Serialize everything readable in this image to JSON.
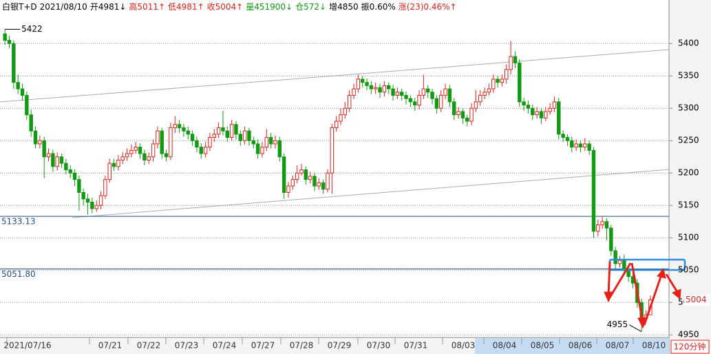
{
  "chart_data": {
    "type": "candlestick",
    "header": [
      "白银T+D",
      "2021/08/10",
      "开4981↓",
      "高5011↑",
      "低4981↑",
      "收5004↑",
      "量451900↓",
      "仓572↓",
      "增4850",
      "振0.60%",
      "涨(23)0.46%↑"
    ],
    "header_colors": [
      "#000000",
      "#000000",
      "#000000",
      "#e0201b",
      "#e0201b",
      "#e0201b",
      "#129a12",
      "#129a12",
      "#000000",
      "#000000",
      "#e0201b"
    ],
    "x_labels": [
      "2021/07/16",
      "07/21",
      "07/22",
      "07/23",
      "07/24",
      "07/27",
      "07/28",
      "07/29",
      "07/30",
      "07/31",
      "08/03",
      "08/04",
      "08/05",
      "08/06",
      "08/07",
      "08/10"
    ],
    "period": "120分钟",
    "up_color": "#e0201b",
    "down_color": "#129a12",
    "ylim": [
      4946,
      5446
    ],
    "yticks": [
      4950,
      5000,
      5050,
      5100,
      5150,
      5200,
      5250,
      5300,
      5350,
      5400
    ],
    "grid": true,
    "reference_lines": [
      5133.13,
      {
        "value": 5051.8,
        "label": "5051.80"
      }
    ],
    "high_label": 5422,
    "low_label": 4955,
    "last_label": 5004,
    "candles": [
      [
        5415,
        5422,
        5398,
        5405
      ],
      [
        5405,
        5412,
        5393,
        5400
      ],
      [
        5400,
        5405,
        5330,
        5340
      ],
      [
        5340,
        5352,
        5322,
        5330
      ],
      [
        5330,
        5338,
        5312,
        5320
      ],
      [
        5320,
        5326,
        5282,
        5290
      ],
      [
        5290,
        5298,
        5256,
        5265
      ],
      [
        5265,
        5272,
        5238,
        5245
      ],
      [
        5245,
        5258,
        5238,
        5250
      ],
      [
        5250,
        5256,
        5192,
        5225
      ],
      [
        5225,
        5238,
        5218,
        5230
      ],
      [
        5230,
        5236,
        5202,
        5210
      ],
      [
        5210,
        5232,
        5204,
        5225
      ],
      [
        5225,
        5230,
        5208,
        5215
      ],
      [
        5215,
        5222,
        5198,
        5205
      ],
      [
        5205,
        5212,
        5192,
        5200
      ],
      [
        5200,
        5206,
        5180,
        5190
      ],
      [
        5190,
        5196,
        5142,
        5170
      ],
      [
        5170,
        5176,
        5150,
        5160
      ],
      [
        5160,
        5168,
        5136,
        5155
      ],
      [
        5155,
        5162,
        5138,
        5145
      ],
      [
        5145,
        5158,
        5140,
        5150
      ],
      [
        5150,
        5172,
        5144,
        5165
      ],
      [
        5165,
        5196,
        5160,
        5190
      ],
      [
        5190,
        5222,
        5185,
        5215
      ],
      [
        5215,
        5222,
        5203,
        5210
      ],
      [
        5210,
        5228,
        5204,
        5220
      ],
      [
        5220,
        5232,
        5214,
        5225
      ],
      [
        5225,
        5238,
        5219,
        5230
      ],
      [
        5230,
        5244,
        5224,
        5235
      ],
      [
        5235,
        5248,
        5230,
        5240
      ],
      [
        5240,
        5246,
        5222,
        5230
      ],
      [
        5230,
        5236,
        5212,
        5220
      ],
      [
        5220,
        5232,
        5214,
        5225
      ],
      [
        5225,
        5252,
        5218,
        5245
      ],
      [
        5245,
        5272,
        5238,
        5265
      ],
      [
        5265,
        5270,
        5222,
        5230
      ],
      [
        5230,
        5236,
        5218,
        5225
      ],
      [
        5225,
        5278,
        5220,
        5270
      ],
      [
        5270,
        5288,
        5262,
        5275
      ],
      [
        5275,
        5282,
        5262,
        5270
      ],
      [
        5270,
        5276,
        5256,
        5265
      ],
      [
        5265,
        5272,
        5252,
        5260
      ],
      [
        5260,
        5266,
        5242,
        5250
      ],
      [
        5250,
        5256,
        5232,
        5240
      ],
      [
        5240,
        5246,
        5222,
        5230
      ],
      [
        5230,
        5248,
        5224,
        5240
      ],
      [
        5240,
        5262,
        5234,
        5255
      ],
      [
        5255,
        5268,
        5248,
        5260
      ],
      [
        5260,
        5278,
        5254,
        5270
      ],
      [
        5270,
        5296,
        5258,
        5265
      ],
      [
        5265,
        5272,
        5248,
        5255
      ],
      [
        5255,
        5282,
        5250,
        5275
      ],
      [
        5275,
        5280,
        5252,
        5260
      ],
      [
        5260,
        5266,
        5242,
        5250
      ],
      [
        5250,
        5272,
        5244,
        5265
      ],
      [
        5265,
        5270,
        5242,
        5250
      ],
      [
        5250,
        5256,
        5238,
        5245
      ],
      [
        5245,
        5252,
        5222,
        5230
      ],
      [
        5230,
        5248,
        5224,
        5240
      ],
      [
        5240,
        5268,
        5234,
        5255
      ],
      [
        5255,
        5262,
        5238,
        5245
      ],
      [
        5245,
        5258,
        5238,
        5250
      ],
      [
        5250,
        5256,
        5218,
        5225
      ],
      [
        5225,
        5230,
        5160,
        5170
      ],
      [
        5170,
        5186,
        5162,
        5180
      ],
      [
        5180,
        5196,
        5174,
        5190
      ],
      [
        5190,
        5212,
        5184,
        5200
      ],
      [
        5200,
        5214,
        5196,
        5205
      ],
      [
        5205,
        5210,
        5182,
        5190
      ],
      [
        5190,
        5202,
        5184,
        5195
      ],
      [
        5195,
        5200,
        5172,
        5180
      ],
      [
        5180,
        5192,
        5174,
        5185
      ],
      [
        5185,
        5190,
        5168,
        5175
      ],
      [
        5175,
        5206,
        5170,
        5200
      ],
      [
        5200,
        5276,
        5168,
        5270
      ],
      [
        5270,
        5288,
        5264,
        5280
      ],
      [
        5280,
        5300,
        5274,
        5290
      ],
      [
        5290,
        5310,
        5284,
        5300
      ],
      [
        5300,
        5328,
        5294,
        5320
      ],
      [
        5320,
        5338,
        5314,
        5330
      ],
      [
        5330,
        5352,
        5324,
        5345
      ],
      [
        5345,
        5350,
        5332,
        5340
      ],
      [
        5340,
        5346,
        5328,
        5335
      ],
      [
        5335,
        5342,
        5322,
        5330
      ],
      [
        5330,
        5340,
        5322,
        5332
      ],
      [
        5332,
        5338,
        5316,
        5325
      ],
      [
        5325,
        5342,
        5318,
        5335
      ],
      [
        5335,
        5340,
        5322,
        5330
      ],
      [
        5330,
        5336,
        5312,
        5320
      ],
      [
        5320,
        5332,
        5314,
        5325
      ],
      [
        5325,
        5330,
        5312,
        5320
      ],
      [
        5320,
        5326,
        5306,
        5315
      ],
      [
        5315,
        5320,
        5302,
        5310
      ],
      [
        5310,
        5316,
        5296,
        5305
      ],
      [
        5305,
        5328,
        5298,
        5320
      ],
      [
        5320,
        5352,
        5314,
        5330
      ],
      [
        5330,
        5336,
        5316,
        5325
      ],
      [
        5325,
        5330,
        5306,
        5315
      ],
      [
        5315,
        5320,
        5292,
        5300
      ],
      [
        5300,
        5328,
        5294,
        5320
      ],
      [
        5320,
        5338,
        5314,
        5330
      ],
      [
        5330,
        5336,
        5302,
        5310
      ],
      [
        5310,
        5316,
        5282,
        5290
      ],
      [
        5290,
        5302,
        5284,
        5295
      ],
      [
        5295,
        5300,
        5276,
        5285
      ],
      [
        5285,
        5290,
        5272,
        5280
      ],
      [
        5280,
        5308,
        5274,
        5300
      ],
      [
        5300,
        5328,
        5294,
        5310
      ],
      [
        5310,
        5328,
        5304,
        5320
      ],
      [
        5320,
        5332,
        5314,
        5325
      ],
      [
        5325,
        5338,
        5320,
        5330
      ],
      [
        5330,
        5352,
        5324,
        5345
      ],
      [
        5345,
        5350,
        5332,
        5340
      ],
      [
        5340,
        5352,
        5334,
        5345
      ],
      [
        5345,
        5368,
        5338,
        5360
      ],
      [
        5360,
        5404,
        5352,
        5380
      ],
      [
        5380,
        5388,
        5362,
        5370
      ],
      [
        5370,
        5376,
        5302,
        5310
      ],
      [
        5310,
        5316,
        5296,
        5305
      ],
      [
        5305,
        5312,
        5292,
        5300
      ],
      [
        5300,
        5306,
        5282,
        5290
      ],
      [
        5290,
        5302,
        5284,
        5295
      ],
      [
        5295,
        5300,
        5276,
        5285
      ],
      [
        5285,
        5302,
        5280,
        5295
      ],
      [
        5295,
        5308,
        5290,
        5300
      ],
      [
        5300,
        5318,
        5294,
        5310
      ],
      [
        5310,
        5316,
        5252,
        5260
      ],
      [
        5260,
        5266,
        5248,
        5255
      ],
      [
        5255,
        5260,
        5242,
        5250
      ],
      [
        5250,
        5256,
        5232,
        5240
      ],
      [
        5240,
        5252,
        5234,
        5245
      ],
      [
        5245,
        5250,
        5232,
        5240
      ],
      [
        5240,
        5254,
        5234,
        5245
      ],
      [
        5245,
        5250,
        5228,
        5235
      ],
      [
        5235,
        5240,
        5100,
        5110
      ],
      [
        5110,
        5128,
        5102,
        5120
      ],
      [
        5120,
        5132,
        5114,
        5125
      ],
      [
        5125,
        5130,
        5096,
        5115
      ],
      [
        5115,
        5120,
        5072,
        5080
      ],
      [
        5080,
        5086,
        5052,
        5060
      ],
      [
        5060,
        5072,
        5054,
        5065
      ],
      [
        5065,
        5074,
        5042,
        5050
      ],
      [
        5050,
        5056,
        5032,
        5040
      ],
      [
        5040,
        5046,
        5022,
        5030
      ],
      [
        5030,
        5036,
        4992,
        5000
      ],
      [
        5000,
        5006,
        4955,
        4975
      ],
      [
        4975,
        4988,
        4970,
        4981
      ],
      [
        4981,
        5011,
        4981,
        5004
      ]
    ]
  }
}
